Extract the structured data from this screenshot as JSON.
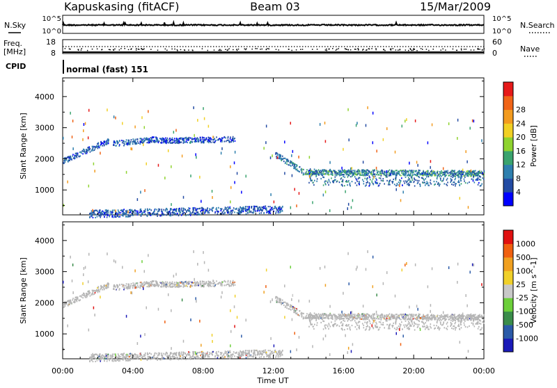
{
  "header": {
    "station": "Kapuskasing (fitACF)",
    "beam": "Beam 03",
    "date": "15/Mar/2009"
  },
  "noise_panel": {
    "left_label": "N.Sky",
    "right_label": "N.Search",
    "left_ticks": [
      "10^5",
      "10^0"
    ],
    "right_ticks": [
      "10^5",
      "10^0"
    ]
  },
  "freq_panel": {
    "left_label_line1": "Freq.",
    "left_label_line2": "[MHz]",
    "right_label": "Nave",
    "left_ticks": [
      "18",
      "8"
    ],
    "right_ticks": [
      "60",
      "0"
    ]
  },
  "cpid_panel": {
    "label": "CPID",
    "mode_text": "normal (fast) 151"
  },
  "colors": {
    "power_scale": [
      "#0000ff",
      "#234ba3",
      "#2e7fae",
      "#3aa36e",
      "#8fd32f",
      "#f1d024",
      "#f39b1f",
      "#f06417",
      "#e61919"
    ],
    "velocity_scale": [
      "#1a1ab8",
      "#2a5aa8",
      "#3a8c4a",
      "#6ccf3a",
      "#c8c8c8",
      "#f0d02a",
      "#f0a020",
      "#f06010",
      "#e01010"
    ],
    "ground_scatter": "#b5b5b5"
  },
  "x_axis": {
    "label": "Time UT",
    "ticks": [
      "00:00",
      "04:00",
      "08:00",
      "12:00",
      "16:00",
      "20:00",
      "00:00"
    ]
  },
  "chart_data": [
    {
      "type": "heatmap",
      "name": "power",
      "ylabel": "Slant Range [km]",
      "yticks": [
        1000,
        2000,
        3000,
        4000
      ],
      "ylim": [
        200,
        4600
      ],
      "xlim": [
        0,
        24
      ],
      "colorbar_label": "Power [dB]",
      "colorbar_ticks": [
        "4",
        "8",
        "12",
        "16",
        "20",
        "24",
        "28"
      ],
      "colorbar_range": [
        0,
        30
      ],
      "features": [
        {
          "desc": "band",
          "t_start": 0.0,
          "t_end": 2.6,
          "range_start_km": 1950,
          "range_end_km": 2600,
          "power_db": 6
        },
        {
          "desc": "band",
          "t_start": 2.8,
          "t_end": 5.4,
          "range_start_km": 2500,
          "range_end_km": 2650,
          "power_db": 6
        },
        {
          "desc": "band",
          "t_start": 5.4,
          "t_end": 9.8,
          "range_start_km": 2600,
          "range_end_km": 2650,
          "power_db": 5
        },
        {
          "desc": "band",
          "t_start": 12.1,
          "t_end": 13.6,
          "range_start_km": 2150,
          "range_end_km": 1650,
          "power_db": 8
        },
        {
          "desc": "band",
          "t_start": 13.6,
          "t_end": 24.0,
          "range_start_km": 1600,
          "range_end_km": 1550,
          "power_db": 10
        },
        {
          "desc": "near_range",
          "t_start": 1.5,
          "t_end": 12.5,
          "range_start_km": 250,
          "range_end_km": 400,
          "power_db": 6
        }
      ]
    },
    {
      "type": "heatmap",
      "name": "velocity",
      "ylabel": "Slant Range [km]",
      "yticks": [
        1000,
        2000,
        3000,
        4000
      ],
      "ylim": [
        200,
        4600
      ],
      "xlim": [
        0,
        24
      ],
      "colorbar_label": "Velocity [m s^-1]",
      "colorbar_ticks": [
        "1000",
        "500",
        "100",
        "25",
        "-25",
        "-100",
        "-500",
        "-1000"
      ],
      "colorbar_range": [
        -1200,
        1200
      ]
    }
  ]
}
